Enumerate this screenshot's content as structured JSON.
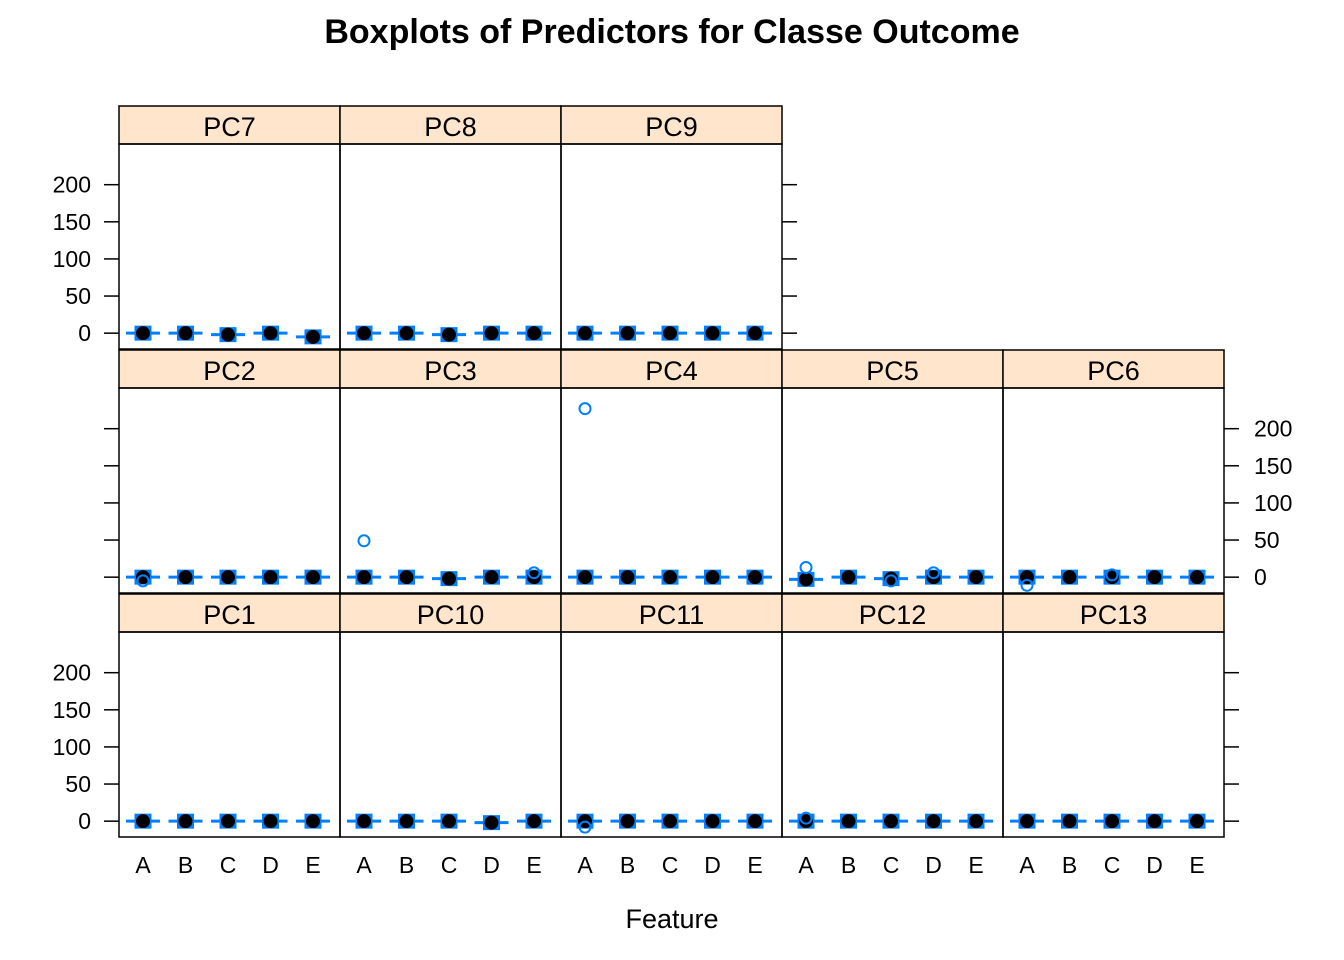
{
  "chart_data": {
    "type": "boxplot",
    "title": "Boxplots of Predictors for Classe Outcome",
    "xlabel": "Feature",
    "ylabel": "",
    "categories": [
      "A",
      "B",
      "C",
      "D",
      "E"
    ],
    "ylim": [
      -20,
      240
    ],
    "yticks": [
      0,
      50,
      100,
      150,
      200
    ],
    "layout": "lattice 5 columns x 3 rows",
    "colors": {
      "box": "#0080ff",
      "median": "#000000",
      "strip": "#ffe5cc",
      "frame": "#000000"
    },
    "panels": [
      {
        "name": "PC1",
        "medians": [
          0,
          0,
          0,
          0,
          0
        ],
        "outliers": [
          [],
          [],
          [],
          [],
          []
        ]
      },
      {
        "name": "PC10",
        "medians": [
          0,
          0,
          0,
          -2,
          0
        ],
        "outliers": [
          [],
          [],
          [],
          [],
          []
        ]
      },
      {
        "name": "PC11",
        "medians": [
          0,
          0,
          0,
          0,
          0
        ],
        "outliers": [
          [
            -8
          ],
          [],
          [],
          [],
          []
        ]
      },
      {
        "name": "PC12",
        "medians": [
          0,
          0,
          0,
          0,
          0
        ],
        "outliers": [
          [
            4
          ],
          [],
          [],
          [],
          []
        ]
      },
      {
        "name": "PC13",
        "medians": [
          0,
          0,
          0,
          0,
          0
        ],
        "outliers": [
          [],
          [],
          [],
          [],
          []
        ]
      },
      {
        "name": "PC2",
        "medians": [
          0,
          0,
          0,
          0,
          0
        ],
        "outliers": [
          [
            -5
          ],
          [],
          [],
          [],
          []
        ]
      },
      {
        "name": "PC3",
        "medians": [
          0,
          0,
          -2,
          0,
          0
        ],
        "outliers": [
          [
            49
          ],
          [],
          [],
          [],
          [
            6
          ]
        ]
      },
      {
        "name": "PC4",
        "medians": [
          0,
          0,
          0,
          0,
          0
        ],
        "outliers": [
          [
            227
          ],
          [],
          [],
          [],
          []
        ]
      },
      {
        "name": "PC5",
        "medians": [
          -3,
          0,
          -2,
          0,
          0
        ],
        "outliers": [
          [
            13
          ],
          [],
          [
            -5
          ],
          [
            6
          ],
          []
        ]
      },
      {
        "name": "PC6",
        "medians": [
          0,
          0,
          0,
          0,
          0
        ],
        "outliers": [
          [
            -11
          ],
          [],
          [
            3
          ],
          [],
          []
        ]
      },
      {
        "name": "PC7",
        "medians": [
          0,
          0,
          -2,
          0,
          -5
        ],
        "outliers": [
          [],
          [],
          [],
          [],
          []
        ]
      },
      {
        "name": "PC8",
        "medians": [
          0,
          0,
          -2,
          0,
          0
        ],
        "outliers": [
          [],
          [],
          [],
          [],
          []
        ]
      },
      {
        "name": "PC9",
        "medians": [
          0,
          0,
          0,
          0,
          0
        ],
        "outliers": [
          [],
          [],
          [],
          [],
          []
        ]
      }
    ]
  }
}
